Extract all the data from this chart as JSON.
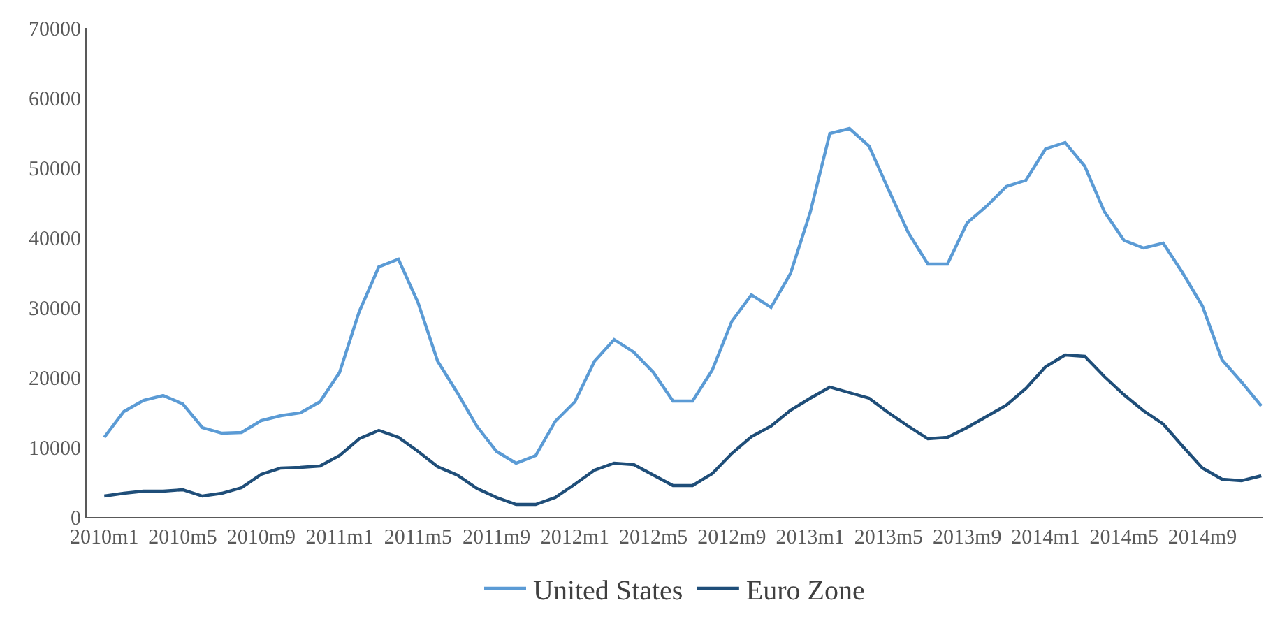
{
  "chart_data": {
    "type": "line",
    "categories": [
      "2010m1",
      null,
      null,
      null,
      "2010m5",
      null,
      null,
      null,
      "2010m9",
      null,
      null,
      null,
      "2011m1",
      null,
      null,
      null,
      "2011m5",
      null,
      null,
      null,
      "2011m9",
      null,
      null,
      null,
      "2012m1",
      null,
      null,
      null,
      "2012m5",
      null,
      null,
      null,
      "2012m9",
      null,
      null,
      null,
      "2013m1",
      null,
      null,
      null,
      "2013m5",
      null,
      null,
      null,
      "2013m9",
      null,
      null,
      null,
      "2014m1",
      null,
      null,
      null,
      "2014m5",
      null,
      null,
      null,
      "2014m9",
      null,
      null,
      null
    ],
    "series": [
      {
        "name": "United States",
        "color": "#5b9bd5",
        "values": [
          11400,
          15100,
          16700,
          17400,
          16200,
          12800,
          12000,
          12100,
          13800,
          14500,
          14900,
          16500,
          20700,
          29400,
          35800,
          36900,
          30700,
          22300,
          17800,
          13000,
          9400,
          7700,
          8800,
          13700,
          16500,
          22300,
          25400,
          23600,
          20700,
          16600,
          16600,
          21000,
          28000,
          31800,
          30000,
          34900,
          43600,
          54900,
          55600,
          53100,
          46800,
          40700,
          36200,
          36200,
          42100,
          44500,
          47300,
          48200,
          52700,
          53600,
          50200,
          43700,
          39600,
          38500,
          39200,
          34900,
          30200,
          22500,
          19300,
          15900
        ]
      },
      {
        "name": "Euro Zone",
        "color": "#1f4e79",
        "values": [
          3000,
          3400,
          3700,
          3700,
          3900,
          3000,
          3400,
          4200,
          6100,
          7000,
          7100,
          7300,
          8800,
          11200,
          12400,
          11400,
          9400,
          7200,
          6000,
          4100,
          2800,
          1800,
          1800,
          2800,
          4700,
          6700,
          7700,
          7500,
          6000,
          4500,
          4500,
          6200,
          9100,
          11500,
          13000,
          15300,
          17000,
          18600,
          17800,
          17000,
          14900,
          13000,
          11200,
          11400,
          12800,
          14400,
          16000,
          18400,
          21500,
          23200,
          23000,
          20100,
          17500,
          15200,
          13300,
          10100,
          7000,
          5400,
          5200,
          5900
        ]
      }
    ],
    "ylim": [
      0,
      70000
    ],
    "yticks": [
      0,
      10000,
      20000,
      30000,
      40000,
      50000,
      60000,
      70000
    ],
    "grid": false,
    "legend": "bottom",
    "line_style": "solid",
    "marker": "none"
  }
}
